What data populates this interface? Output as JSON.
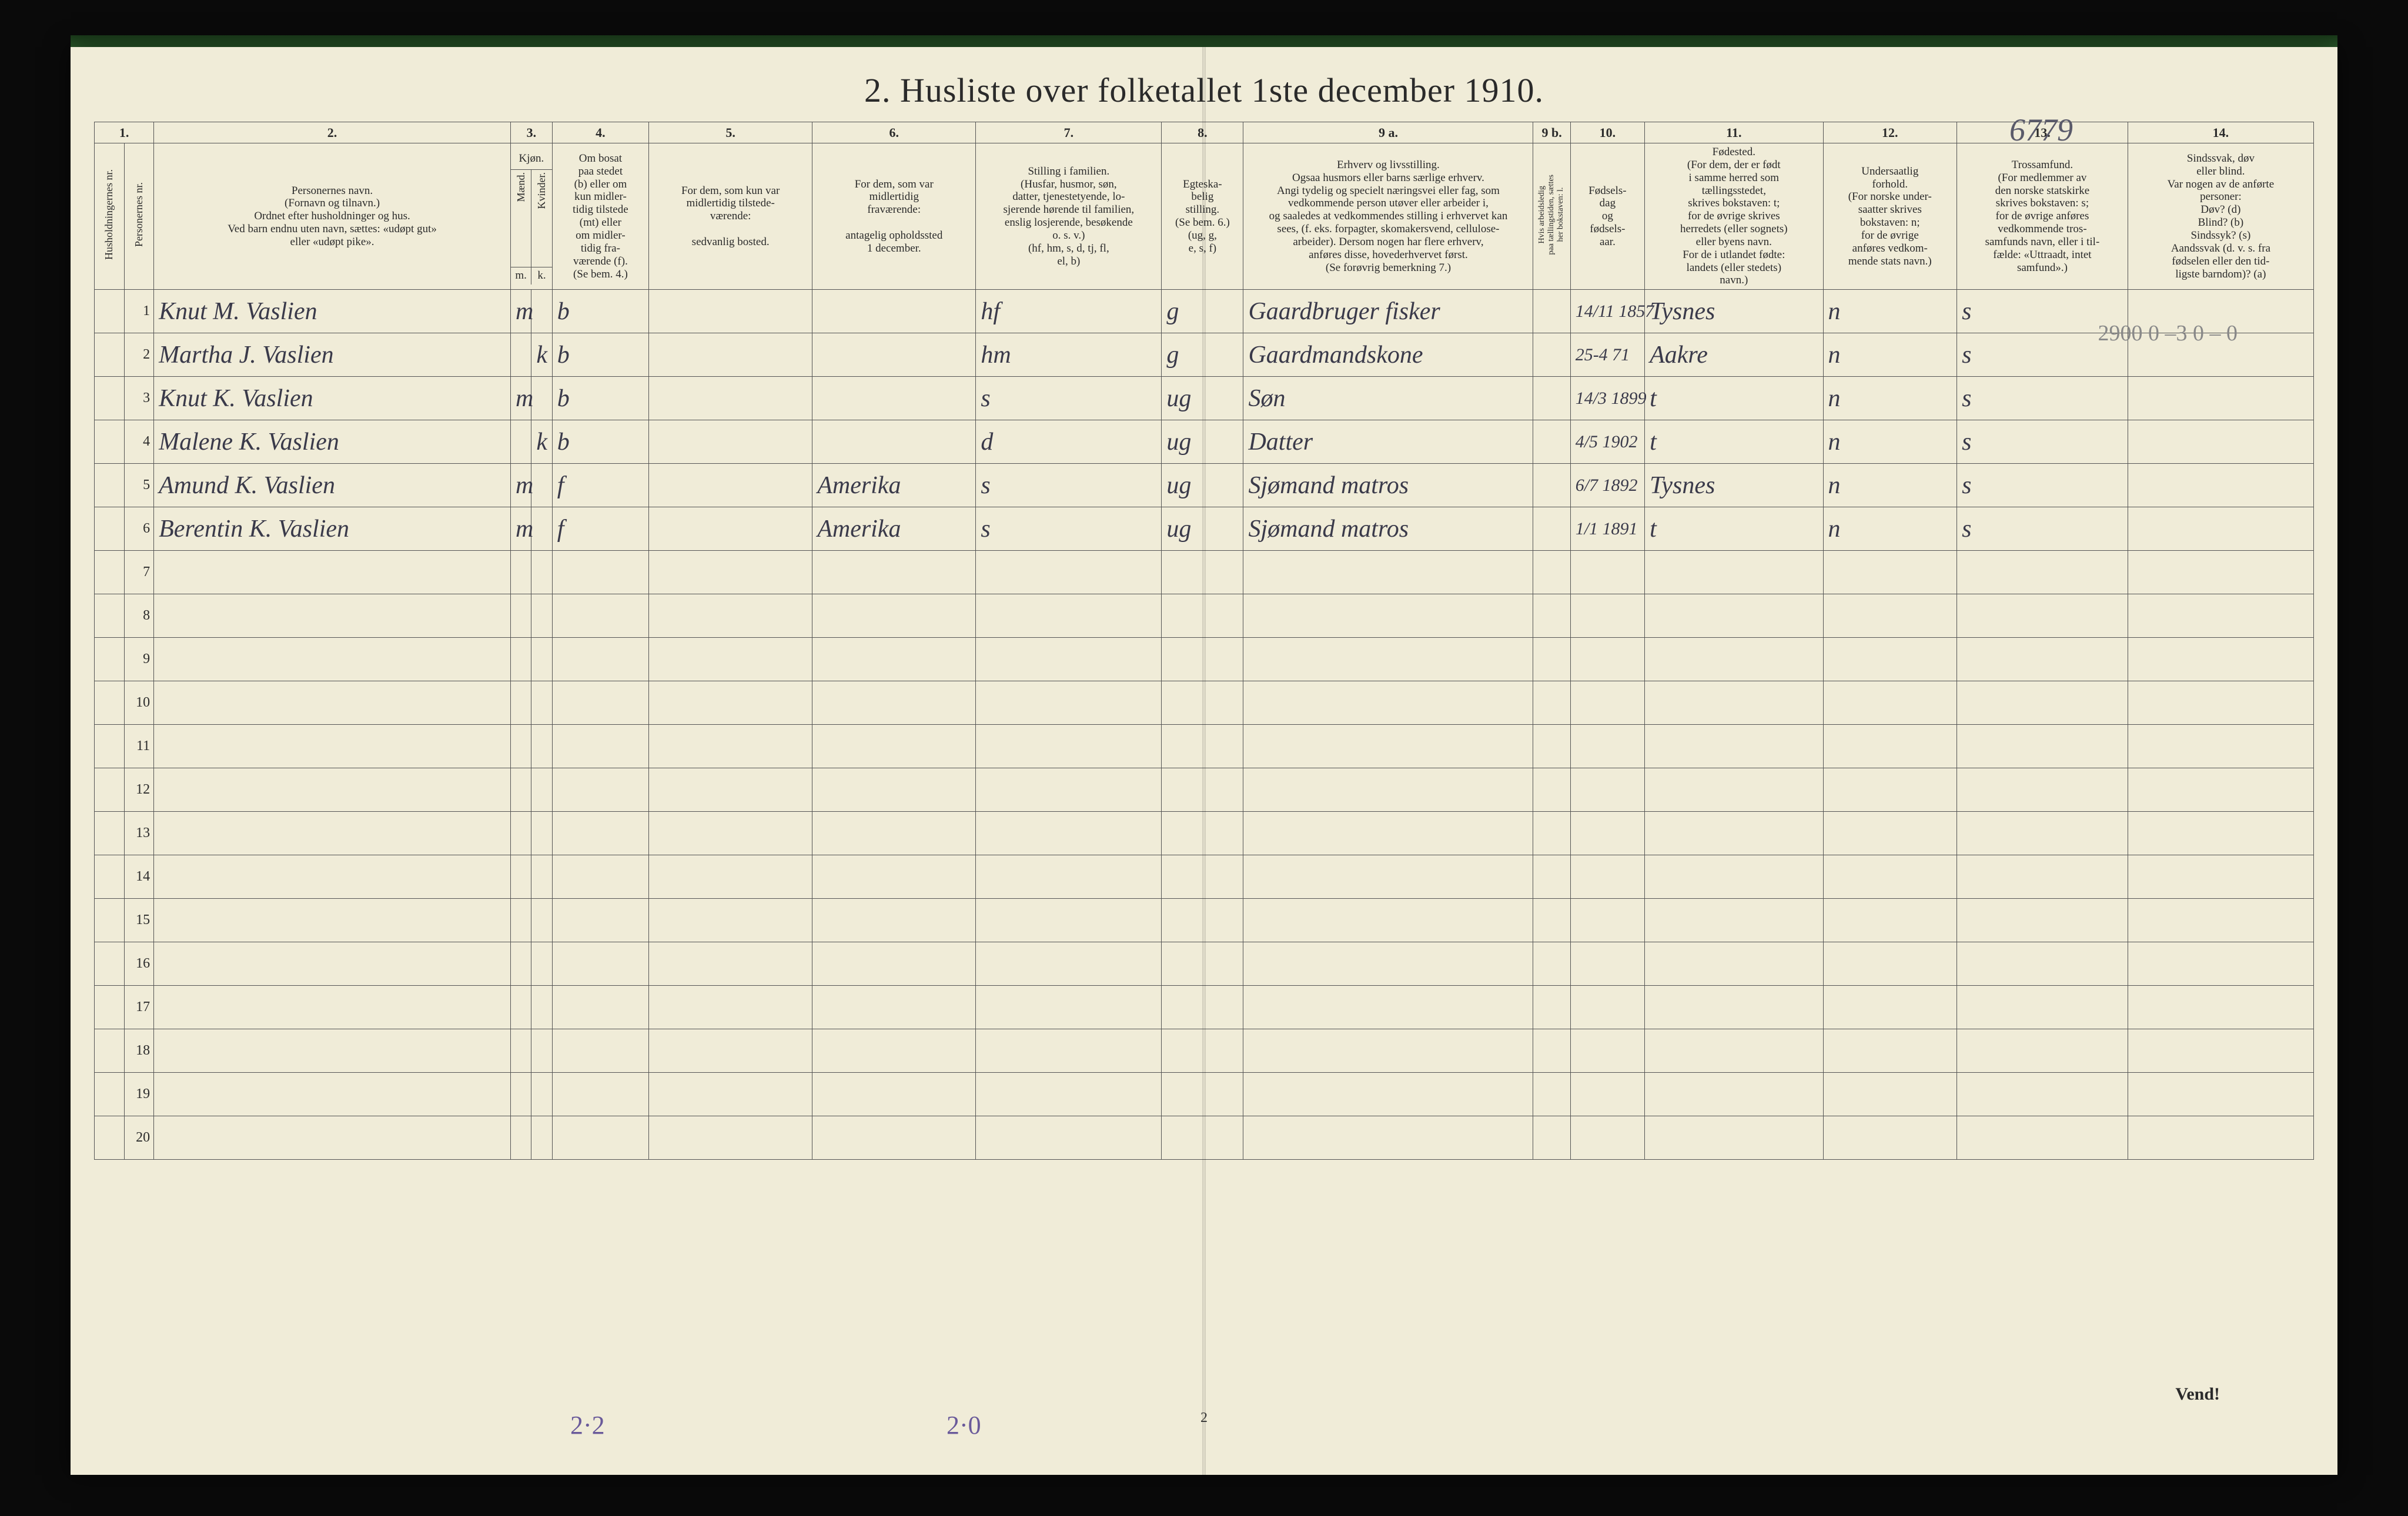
{
  "title": "2.   Husliste over folketallet 1ste december 1910.",
  "topright_handwritten": "6779",
  "pencil_topright": "2900  0  –3\n0 – 0",
  "column_numbers": [
    "1.",
    "",
    "2.",
    "3.",
    "4.",
    "5.",
    "6.",
    "7.",
    "8.",
    "9 a.",
    "9 b.",
    "10.",
    "11.",
    "12.",
    "13.",
    "14."
  ],
  "column_headers": {
    "c1a": "Husholdningernes nr.",
    "c1b": "Personernes nr.",
    "c2": "Personernes navn.\n(Fornavn og tilnavn.)\nOrdnet efter husholdninger og hus.\nVed barn endnu uten navn, sættes: «udøpt gut»\neller «udøpt pike».",
    "c3": "Kjøn.",
    "c3_sub_m": "Mænd.",
    "c3_sub_k": "Kvinder.",
    "c3_foot_m": "m.",
    "c3_foot_k": "k.",
    "c4": "Om bosat\npaa stedet\n(b) eller om\nkun midler-\ntidig tilstede\n(mt) eller\nom midler-\ntidig fra-\nværende (f).\n(Se bem. 4.)",
    "c5": "For dem, som kun var\nmidlertidig tilstede-\nværende:\n\nsedvanlig bosted.",
    "c6": "For dem, som var\nmidlertidig\nfraværende:\n\nantagelig opholdssted\n1 december.",
    "c7": "Stilling i familien.\n(Husfar, husmor, søn,\ndatter, tjenestetyende, lo-\nsjerende hørende til familien,\nenslig losjerende, besøkende\no. s. v.)\n(hf, hm, s, d, tj, fl,\nel, b)",
    "c8": "Egteska-\nbelig\nstilling.\n(Se bem. 6.)\n(ug, g,\ne, s, f)",
    "c9a": "Erhverv og livsstilling.\nOgsaa husmors eller barns særlige erhverv.\nAngi tydelig og specielt næringsvei eller fag, som\nvedkommende person utøver eller arbeider i,\nog saaledes at vedkommendes stilling i erhvervet kan\nsees, (f. eks. forpagter, skomakersvend, cellulose-\narbeider). Dersom nogen har flere erhverv,\nanføres disse, hovederhvervet først.\n(Se forøvrig bemerkning 7.)",
    "c9b": "Hvis arbeidsledig\npaa tællingstiden, sættes\nher bokstaven: l.",
    "c10": "Fødsels-\ndag\nog\nfødsels-\naar.",
    "c11": "Fødested.\n(For dem, der er født\ni samme herred som\ntællingsstedet,\nskrives bokstaven: t;\nfor de øvrige skrives\nherredets (eller sognets)\neller byens navn.\nFor de i utlandet fødte:\nlandets (eller stedets)\nnavn.)",
    "c12": "Undersaatlig\nforhold.\n(For norske under-\nsaatter skrives\nbokstaven: n;\nfor de øvrige\nanføres vedkom-\nmende stats navn.)",
    "c13": "Trossamfund.\n(For medlemmer av\nden norske statskirke\nskrives bokstaven: s;\nfor de øvrige anføres\nvedkommende tros-\nsamfunds navn, eller i til-\nfælde: «Uttraadt, intet\nsamfund».)",
    "c14": "Sindssvak, døv\neller blind.\nVar nogen av de anførte\npersoner:\nDøv?        (d)\nBlind?      (b)\nSindssyk?  (s)\nAandssvak (d. v. s. fra\nfødselen eller den tid-\nligste barndom)?  (a)"
  },
  "rows": [
    {
      "n": "1",
      "name": "Knut M. Vaslien",
      "sex_m": "m",
      "sex_k": "",
      "c4": "b",
      "c5": "",
      "c6": "",
      "c7": "hf",
      "c8": "g",
      "c9a": "Gaardbruger fisker",
      "c10": "14/11 1857",
      "c11": "Tysnes",
      "c12": "n",
      "c13": "s",
      "c14": ""
    },
    {
      "n": "2",
      "name": "Martha J. Vaslien",
      "sex_m": "",
      "sex_k": "k",
      "c4": "b",
      "c5": "",
      "c6": "",
      "c7": "hm",
      "c8": "g",
      "c9a": "Gaardmandskone",
      "c10": "25-4 71",
      "c11": "Aakre",
      "c12": "n",
      "c13": "s",
      "c14": ""
    },
    {
      "n": "3",
      "name": "Knut K. Vaslien",
      "sex_m": "m",
      "sex_k": "",
      "c4": "b",
      "c5": "",
      "c6": "",
      "c7": "s",
      "c8": "ug",
      "c9a": "Søn",
      "c10": "14/3 1899",
      "c11": "t",
      "c12": "n",
      "c13": "s",
      "c14": ""
    },
    {
      "n": "4",
      "name": "Malene K. Vaslien",
      "sex_m": "",
      "sex_k": "k",
      "c4": "b",
      "c5": "",
      "c6": "",
      "c7": "d",
      "c8": "ug",
      "c9a": "Datter",
      "c10": "4/5 1902",
      "c11": "t",
      "c12": "n",
      "c13": "s",
      "c14": ""
    },
    {
      "n": "5",
      "name": "Amund K. Vaslien",
      "sex_m": "m",
      "sex_k": "",
      "c4": "f",
      "c5": "",
      "c6": "Amerika",
      "c7": "s",
      "c8": "ug",
      "c9a": "Sjømand matros",
      "c10": "6/7 1892",
      "c11": "Tysnes",
      "c12": "n",
      "c13": "s",
      "c14": ""
    },
    {
      "n": "6",
      "name": "Berentin K. Vaslien",
      "sex_m": "m",
      "sex_k": "",
      "c4": "f",
      "c5": "",
      "c6": "Amerika",
      "c7": "s",
      "c8": "ug",
      "c9a": "Sjømand matros",
      "c10": "1/1 1891",
      "c11": "t",
      "c12": "n",
      "c13": "s",
      "c14": ""
    },
    {
      "n": "7"
    },
    {
      "n": "8"
    },
    {
      "n": "9"
    },
    {
      "n": "10"
    },
    {
      "n": "11"
    },
    {
      "n": "12"
    },
    {
      "n": "13"
    },
    {
      "n": "14"
    },
    {
      "n": "15"
    },
    {
      "n": "16"
    },
    {
      "n": "17"
    },
    {
      "n": "18"
    },
    {
      "n": "19"
    },
    {
      "n": "20"
    }
  ],
  "bottom_pencil_1": "2·2",
  "bottom_pencil_2": "2·0",
  "bottom_page_num": "2",
  "vend": "Vend!"
}
